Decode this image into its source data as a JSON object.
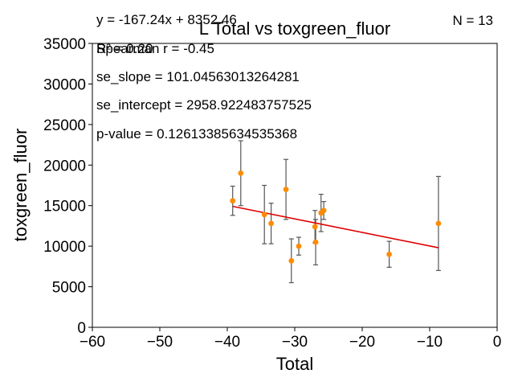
{
  "chart_data": {
    "type": "scatter",
    "title": "L Total vs toxgreen_fluor",
    "xlabel": "Total",
    "ylabel": "toxgreen_fluor",
    "xlim": [
      -60,
      0
    ],
    "ylim": [
      0,
      35000
    ],
    "x_ticks": [
      -60,
      -50,
      -40,
      -30,
      -20,
      -10,
      0
    ],
    "y_ticks": [
      0,
      5000,
      10000,
      15000,
      20000,
      25000,
      30000,
      35000
    ],
    "grid": false,
    "points": [
      {
        "x": -39.2,
        "y": 15600,
        "err": 1800
      },
      {
        "x": -38.0,
        "y": 19000,
        "err": 4000
      },
      {
        "x": -34.5,
        "y": 13900,
        "err": 3600
      },
      {
        "x": -33.5,
        "y": 12800,
        "err": 2500
      },
      {
        "x": -31.3,
        "y": 17000,
        "err": 3700
      },
      {
        "x": -30.5,
        "y": 8200,
        "err": 2700
      },
      {
        "x": -29.4,
        "y": 10000,
        "err": 1100
      },
      {
        "x": -27.0,
        "y": 12400,
        "err": 2000
      },
      {
        "x": -26.9,
        "y": 10500,
        "err": 2800
      },
      {
        "x": -26.1,
        "y": 14100,
        "err": 2300
      },
      {
        "x": -25.7,
        "y": 14400,
        "err": 1100
      },
      {
        "x": -16.0,
        "y": 9000,
        "err": 1600
      },
      {
        "x": -8.7,
        "y": 12800,
        "err": 5800
      }
    ],
    "fit_line": {
      "slope": -167.24,
      "intercept": 8352.46,
      "x_range": [
        -39.2,
        -8.7
      ]
    },
    "annotations": {
      "equation": "y = -167.24x + 8352.46",
      "r_squared": "R² = 0.20",
      "spearman": "Spearman r = -0.45",
      "se_slope": "se_slope = 101.04563013264281",
      "se_intercept": "se_intercept = 2958.922483757525",
      "p_value": "p-value = 0.12613385634535368",
      "n": "N = 13"
    },
    "colors": {
      "points": "#ff8c00",
      "fit": "#e00000",
      "errorbars": "#555555"
    }
  }
}
